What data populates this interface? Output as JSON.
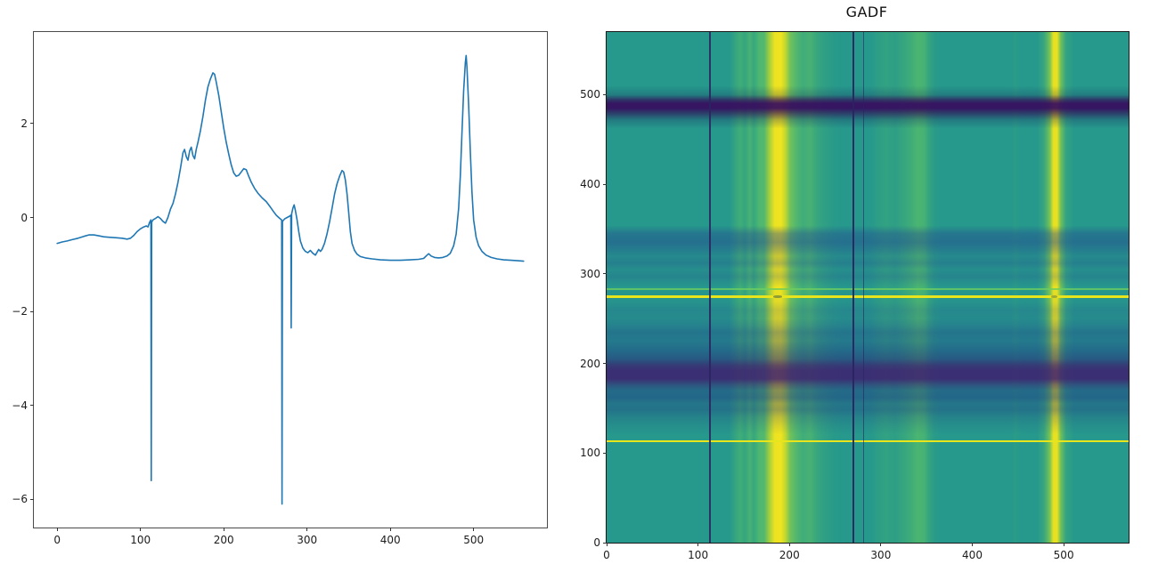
{
  "page": {
    "background": "#ffffff"
  },
  "chart_data": [
    {
      "type": "line",
      "title": "",
      "xlabel": "",
      "ylabel": "",
      "xlim": [
        -28,
        588
      ],
      "ylim": [
        -6.6,
        3.95
      ],
      "grid": false,
      "legend": "none",
      "line_color": "#1f77b4",
      "line_width": 1.6,
      "xticks": {
        "values": [
          0,
          100,
          200,
          300,
          400,
          500
        ],
        "labels": [
          "0",
          "100",
          "200",
          "300",
          "400",
          "500"
        ]
      },
      "yticks": {
        "values": [
          2,
          0,
          -2,
          -4,
          -6
        ],
        "labels": [
          "2",
          "0",
          "−2",
          "−4",
          "−6"
        ]
      },
      "series": [
        [
          0,
          -0.55
        ],
        [
          6,
          -0.52
        ],
        [
          12,
          -0.5
        ],
        [
          18,
          -0.47
        ],
        [
          25,
          -0.44
        ],
        [
          32,
          -0.4
        ],
        [
          38,
          -0.37
        ],
        [
          44,
          -0.37
        ],
        [
          50,
          -0.39
        ],
        [
          56,
          -0.41
        ],
        [
          62,
          -0.42
        ],
        [
          70,
          -0.43
        ],
        [
          78,
          -0.44
        ],
        [
          84,
          -0.46
        ],
        [
          88,
          -0.44
        ],
        [
          92,
          -0.38
        ],
        [
          96,
          -0.3
        ],
        [
          100,
          -0.24
        ],
        [
          104,
          -0.2
        ],
        [
          107,
          -0.18
        ],
        [
          109,
          -0.2
        ],
        [
          111,
          -0.1
        ],
        [
          112.5,
          -0.05
        ],
        [
          113,
          -5.6
        ],
        [
          113.5,
          -0.1
        ],
        [
          115,
          -0.05
        ],
        [
          118,
          -0.02
        ],
        [
          121,
          0.02
        ],
        [
          124,
          -0.02
        ],
        [
          127,
          -0.08
        ],
        [
          130,
          -0.12
        ],
        [
          133,
          0.0
        ],
        [
          136,
          0.18
        ],
        [
          139,
          0.3
        ],
        [
          142,
          0.5
        ],
        [
          145,
          0.75
        ],
        [
          148,
          1.05
        ],
        [
          151,
          1.38
        ],
        [
          153,
          1.45
        ],
        [
          155,
          1.3
        ],
        [
          157,
          1.22
        ],
        [
          159,
          1.42
        ],
        [
          161,
          1.5
        ],
        [
          163,
          1.32
        ],
        [
          165,
          1.25
        ],
        [
          167,
          1.45
        ],
        [
          169,
          1.6
        ],
        [
          172,
          1.85
        ],
        [
          175,
          2.15
        ],
        [
          178,
          2.5
        ],
        [
          181,
          2.78
        ],
        [
          184,
          2.95
        ],
        [
          187,
          3.08
        ],
        [
          189,
          3.05
        ],
        [
          191,
          2.88
        ],
        [
          194,
          2.6
        ],
        [
          197,
          2.25
        ],
        [
          200,
          1.9
        ],
        [
          203,
          1.6
        ],
        [
          206,
          1.35
        ],
        [
          209,
          1.12
        ],
        [
          212,
          0.95
        ],
        [
          215,
          0.88
        ],
        [
          218,
          0.9
        ],
        [
          221,
          0.97
        ],
        [
          224,
          1.04
        ],
        [
          227,
          1.02
        ],
        [
          230,
          0.88
        ],
        [
          233,
          0.75
        ],
        [
          237,
          0.62
        ],
        [
          241,
          0.52
        ],
        [
          246,
          0.42
        ],
        [
          251,
          0.34
        ],
        [
          256,
          0.22
        ],
        [
          260,
          0.12
        ],
        [
          263,
          0.05
        ],
        [
          266,
          0.0
        ],
        [
          268,
          -0.03
        ],
        [
          269.5,
          -0.05
        ],
        [
          270,
          -6.1
        ],
        [
          270.5,
          -0.08
        ],
        [
          273,
          -0.03
        ],
        [
          276,
          0.0
        ],
        [
          279,
          0.03
        ],
        [
          280.5,
          0.05
        ],
        [
          281,
          -2.35
        ],
        [
          281.5,
          0.08
        ],
        [
          283,
          0.2
        ],
        [
          284.5,
          0.27
        ],
        [
          286,
          0.15
        ],
        [
          288,
          -0.05
        ],
        [
          290,
          -0.3
        ],
        [
          292,
          -0.5
        ],
        [
          295,
          -0.65
        ],
        [
          298,
          -0.72
        ],
        [
          301,
          -0.75
        ],
        [
          304,
          -0.7
        ],
        [
          307,
          -0.76
        ],
        [
          310,
          -0.8
        ],
        [
          312,
          -0.74
        ],
        [
          314,
          -0.68
        ],
        [
          316,
          -0.72
        ],
        [
          318,
          -0.68
        ],
        [
          321,
          -0.55
        ],
        [
          324,
          -0.35
        ],
        [
          327,
          -0.1
        ],
        [
          330,
          0.2
        ],
        [
          333,
          0.5
        ],
        [
          336,
          0.72
        ],
        [
          339,
          0.88
        ],
        [
          342,
          1.0
        ],
        [
          344,
          0.97
        ],
        [
          346,
          0.8
        ],
        [
          348,
          0.5
        ],
        [
          350,
          0.1
        ],
        [
          352,
          -0.3
        ],
        [
          354,
          -0.55
        ],
        [
          357,
          -0.7
        ],
        [
          360,
          -0.78
        ],
        [
          364,
          -0.83
        ],
        [
          370,
          -0.86
        ],
        [
          378,
          -0.88
        ],
        [
          388,
          -0.9
        ],
        [
          400,
          -0.91
        ],
        [
          412,
          -0.91
        ],
        [
          424,
          -0.9
        ],
        [
          434,
          -0.89
        ],
        [
          440,
          -0.87
        ],
        [
          444,
          -0.8
        ],
        [
          446,
          -0.77
        ],
        [
          449,
          -0.82
        ],
        [
          453,
          -0.85
        ],
        [
          458,
          -0.86
        ],
        [
          463,
          -0.85
        ],
        [
          468,
          -0.82
        ],
        [
          472,
          -0.76
        ],
        [
          476,
          -0.6
        ],
        [
          479,
          -0.35
        ],
        [
          482,
          0.2
        ],
        [
          484,
          0.9
        ],
        [
          486,
          1.8
        ],
        [
          488,
          2.7
        ],
        [
          490,
          3.3
        ],
        [
          491,
          3.45
        ],
        [
          492,
          3.2
        ],
        [
          494,
          2.4
        ],
        [
          496,
          1.4
        ],
        [
          498,
          0.55
        ],
        [
          500,
          -0.05
        ],
        [
          503,
          -0.42
        ],
        [
          506,
          -0.6
        ],
        [
          510,
          -0.72
        ],
        [
          515,
          -0.8
        ],
        [
          521,
          -0.85
        ],
        [
          528,
          -0.88
        ],
        [
          536,
          -0.9
        ],
        [
          545,
          -0.91
        ],
        [
          553,
          -0.92
        ],
        [
          560,
          -0.93
        ]
      ]
    },
    {
      "type": "heatmap",
      "title": "GADF",
      "xlabel": "",
      "ylabel": "",
      "xlim": [
        0,
        571
      ],
      "ylim": [
        0,
        570
      ],
      "colormap": "viridis",
      "background_color": "#26988c",
      "xticks": {
        "values": [
          0,
          100,
          200,
          300,
          400,
          500
        ],
        "labels": [
          "0",
          "100",
          "200",
          "300",
          "400",
          "500"
        ]
      },
      "yticks": {
        "values": [
          0,
          100,
          200,
          300,
          400,
          500
        ],
        "labels": [
          "0",
          "100",
          "200",
          "300",
          "400",
          "500"
        ]
      },
      "vertical_profile_stops": [
        [
          0,
          "rgba(0,0,0,0)"
        ],
        [
          23.5,
          "rgba(0,0,0,0)"
        ],
        [
          25.6,
          "rgba(90,195,100,0.5)"
        ],
        [
          26.5,
          "rgba(80,190,100,0.35)"
        ],
        [
          27.4,
          "rgba(100,200,100,0.55)"
        ],
        [
          28.2,
          "rgba(80,190,100,0.4)"
        ],
        [
          29.3,
          "rgba(105,205,95,0.6)"
        ],
        [
          30.2,
          "rgba(120,210,85,0.55)"
        ],
        [
          31.2,
          "rgba(195,222,40,0.8)"
        ],
        [
          32.2,
          "rgba(246,230,28,0.95)"
        ],
        [
          33.4,
          "rgba(248,231,26,0.96)"
        ],
        [
          34.3,
          "rgba(215,226,35,0.85)"
        ],
        [
          35.2,
          "rgba(150,215,65,0.65)"
        ],
        [
          36.4,
          "rgba(115,207,88,0.55)"
        ],
        [
          37.6,
          "rgba(95,198,98,0.45)"
        ],
        [
          39.0,
          "rgba(105,202,92,0.5)"
        ],
        [
          40.4,
          "rgba(85,190,102,0.35)"
        ],
        [
          41.8,
          "rgba(75,180,110,0.25)"
        ],
        [
          43.5,
          "rgba(60,168,120,0.12)"
        ],
        [
          45.3,
          "rgba(0,0,0,0)"
        ],
        [
          50.5,
          "rgba(0,0,0,0)"
        ],
        [
          51.8,
          "rgba(75,182,108,0.18)"
        ],
        [
          53.5,
          "rgba(80,188,105,0.28)"
        ],
        [
          55.3,
          "rgba(75,182,108,0.22)"
        ],
        [
          57.0,
          "rgba(85,192,100,0.35)"
        ],
        [
          58.4,
          "rgba(95,198,95,0.45)"
        ],
        [
          59.6,
          "rgba(105,205,90,0.55)"
        ],
        [
          60.9,
          "rgba(100,202,93,0.5)"
        ],
        [
          61.7,
          "rgba(85,190,100,0.32)"
        ],
        [
          62.8,
          "rgba(65,172,115,0.14)"
        ],
        [
          64.0,
          "rgba(0,0,0,0)"
        ],
        [
          77.5,
          "rgba(0,0,0,0)"
        ],
        [
          78.3,
          "rgba(75,182,108,0.12)"
        ],
        [
          79.3,
          "rgba(0,0,0,0)"
        ],
        [
          82.5,
          "rgba(0,0,0,0)"
        ],
        [
          83.8,
          "rgba(95,198,98,0.3)"
        ],
        [
          84.9,
          "rgba(160,218,55,0.65)"
        ],
        [
          85.6,
          "rgba(242,229,28,0.95)"
        ],
        [
          86.3,
          "rgba(242,229,28,0.95)"
        ],
        [
          87.0,
          "rgba(160,218,55,0.6)"
        ],
        [
          88.0,
          "rgba(95,198,98,0.25)"
        ],
        [
          89.5,
          "rgba(0,0,0,0)"
        ],
        [
          100,
          "rgba(0,0,0,0)"
        ]
      ],
      "horizontal_profile_stops": [
        [
          0,
          "rgba(0,0,0,0)"
        ],
        [
          10.5,
          "rgba(0,0,0,0)"
        ],
        [
          12.3,
          "rgba(25,45,95,0.25)"
        ],
        [
          13.3,
          "rgba(48,14,88,0.72)"
        ],
        [
          14.0,
          "rgba(55,10,95,0.92)"
        ],
        [
          14.9,
          "rgba(55,10,95,0.92)"
        ],
        [
          15.8,
          "rgba(48,14,88,0.68)"
        ],
        [
          17.2,
          "rgba(28,48,100,0.3)"
        ],
        [
          18.9,
          "rgba(0,0,0,0)"
        ],
        [
          37.9,
          "rgba(0,0,0,0)"
        ],
        [
          39.5,
          "rgba(35,72,145,0.42)"
        ],
        [
          41.2,
          "rgba(35,72,145,0.5)"
        ],
        [
          42.5,
          "rgba(35,72,145,0.36)"
        ],
        [
          43.9,
          "rgba(35,72,145,0.18)"
        ],
        [
          45.3,
          "rgba(35,72,145,0.3)"
        ],
        [
          46.5,
          "rgba(35,72,145,0.12)"
        ],
        [
          47.9,
          "rgba(35,72,145,0.24)"
        ],
        [
          49.3,
          "rgba(35,72,145,0.08)"
        ],
        [
          50.0,
          "rgba(0,0,0,0)"
        ],
        [
          52.8,
          "rgba(35,72,145,0.06)"
        ],
        [
          54.4,
          "rgba(35,72,145,0.2)"
        ],
        [
          56.1,
          "rgba(35,72,145,0.16)"
        ],
        [
          57.5,
          "rgba(35,72,145,0.28)"
        ],
        [
          58.8,
          "rgba(33,68,140,0.42)"
        ],
        [
          60.5,
          "rgba(33,68,140,0.36)"
        ],
        [
          62.3,
          "rgba(32,62,135,0.5)"
        ],
        [
          64.0,
          "rgba(40,48,125,0.6)"
        ],
        [
          65.3,
          "rgba(58,32,112,0.78)"
        ],
        [
          66.3,
          "rgba(62,30,112,0.86)"
        ],
        [
          67.9,
          "rgba(62,30,112,0.86)"
        ],
        [
          69.1,
          "rgba(52,40,118,0.62)"
        ],
        [
          70.2,
          "rgba(33,62,132,0.5)"
        ],
        [
          71.6,
          "rgba(33,62,132,0.55)"
        ],
        [
          72.8,
          "rgba(33,62,132,0.38)"
        ],
        [
          74.0,
          "rgba(33,62,132,0.42)"
        ],
        [
          75.4,
          "rgba(33,62,132,0.24)"
        ],
        [
          77.2,
          "rgba(33,62,132,0.1)"
        ],
        [
          78.8,
          "rgba(0,0,0,0)"
        ],
        [
          100,
          "rgba(0,0,0,0)"
        ]
      ],
      "vlines": [
        {
          "x": 113,
          "w": 2,
          "color": "rgba(42,36,96,0.88)"
        },
        {
          "x": 270,
          "w": 2.2,
          "color": "rgba(42,36,96,0.92)"
        },
        {
          "x": 281,
          "w": 1.5,
          "color": "rgba(42,36,96,0.6)"
        }
      ],
      "hlines": [
        {
          "y": 283.5,
          "h": 2,
          "color": "rgba(110,205,95,0.8)"
        },
        {
          "y": 275,
          "h": 3,
          "color": "#e8e51c"
        },
        {
          "y": 113,
          "h": 2.5,
          "color": "#e8e51c"
        }
      ],
      "dots": [
        {
          "x": 187,
          "y": 275,
          "w": 10,
          "h": 3,
          "color": "rgba(70,95,75,0.55)"
        },
        {
          "x": 490,
          "y": 275,
          "w": 7,
          "h": 3,
          "color": "rgba(70,100,80,0.45)"
        }
      ]
    }
  ]
}
